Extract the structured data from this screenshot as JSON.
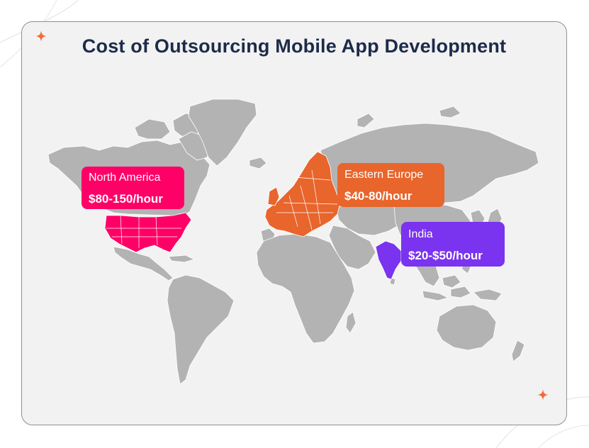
{
  "title": "Cost of Outsourcing Mobile App Development",
  "colors": {
    "background": "#f2f2f2",
    "land": "#b3b3b3",
    "border_lines": "#ffffff",
    "north_america": "#ff0066",
    "eastern_europe": "#e8652c",
    "india": "#7a33ee",
    "accent_star": "#f26b38",
    "title": "#1d2b4a"
  },
  "regions": [
    {
      "id": "north-america",
      "name": "North America",
      "rate": "$80-150/hour",
      "color": "#ff0066"
    },
    {
      "id": "eastern-europe",
      "name": "Eastern Europe",
      "rate": "$40-80/hour",
      "color": "#e8652c"
    },
    {
      "id": "india",
      "name": "India",
      "rate": "$20-$50/hour",
      "color": "#7a33ee"
    }
  ]
}
